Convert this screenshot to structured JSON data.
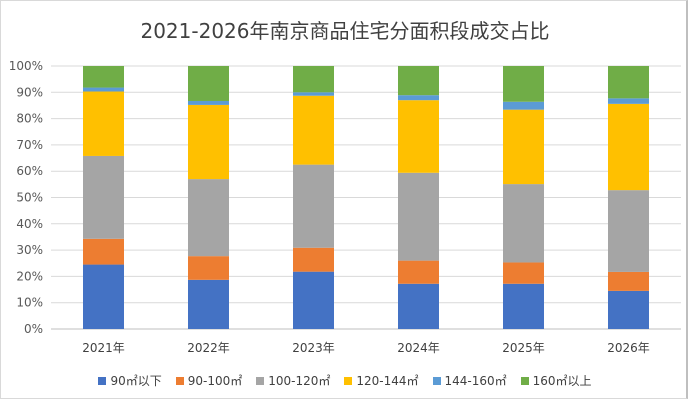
{
  "chart_data": {
    "type": "bar",
    "stacked": true,
    "title": "2021-2026年南京商品住宅分面积段成交占比",
    "categories": [
      "2021年",
      "2022年",
      "2023年",
      "2024年",
      "2025年",
      "2026年"
    ],
    "ylim": [
      0,
      100
    ],
    "yticks": [
      "0%",
      "10%",
      "20%",
      "30%",
      "40%",
      "50%",
      "60%",
      "70%",
      "80%",
      "90%",
      "100%"
    ],
    "grid": true,
    "legend_position": "bottom",
    "series": [
      {
        "name": "90㎡以下",
        "color": "#4472C4",
        "values": [
          24.5,
          18.7,
          21.8,
          17.2,
          17.2,
          14.5
        ]
      },
      {
        "name": "90-100㎡",
        "color": "#ED7D31",
        "values": [
          9.8,
          9.0,
          9.1,
          8.8,
          8.1,
          7.2
        ]
      },
      {
        "name": "100-120㎡",
        "color": "#A5A5A5",
        "values": [
          31.5,
          29.3,
          31.6,
          33.4,
          29.8,
          31.1
        ]
      },
      {
        "name": "120-144㎡",
        "color": "#FFC000",
        "values": [
          24.5,
          28.2,
          26.2,
          27.6,
          28.3,
          32.8
        ]
      },
      {
        "name": "144-160㎡",
        "color": "#5B9BD5",
        "values": [
          1.5,
          1.5,
          1.3,
          1.9,
          3.0,
          2.1
        ]
      },
      {
        "name": "160㎡以上",
        "color": "#70AD47",
        "values": [
          8.2,
          13.3,
          10.0,
          11.1,
          13.6,
          12.3
        ]
      }
    ]
  }
}
